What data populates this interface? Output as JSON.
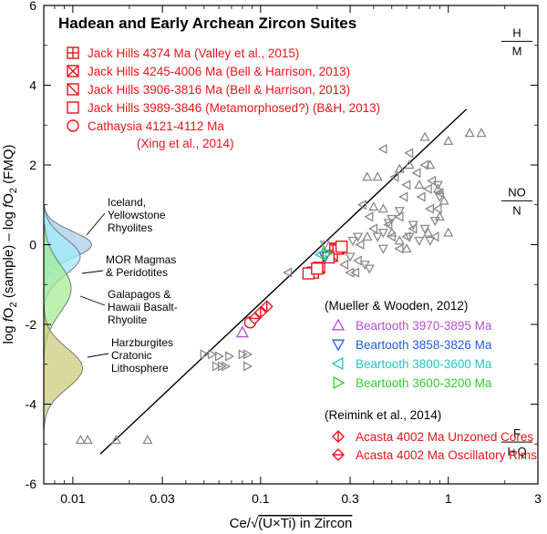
{
  "chart_data": {
    "type": "scatter",
    "title": "Hadean and Early Archean Zircon Suites",
    "xlabel_pre": "Ce/",
    "xlabel_sqrt": "√",
    "xlabel_post": "(U×Ti)  in Zircon",
    "ylabel_parts": [
      "log ",
      "f",
      "O",
      "2",
      " (sample) – log ",
      "f",
      "O",
      "2",
      " (FMQ)"
    ],
    "xscale": "log",
    "xlim": [
      0.007,
      3
    ],
    "ylim": [
      -6,
      6
    ],
    "xticks": [
      0.01,
      0.03,
      0.1,
      0.3,
      1,
      3
    ],
    "xtick_labels": [
      "0.01",
      "0.03",
      "0.1",
      "0.3",
      "1",
      "3"
    ],
    "yticks": [
      -6,
      -4,
      -2,
      0,
      2,
      4,
      6
    ],
    "ytick_labels": [
      "-6",
      "-4",
      "-2",
      "0",
      "2",
      "4",
      "6"
    ],
    "grid": false,
    "regression_line": {
      "x": [
        0.014,
        1.25
      ],
      "y": [
        -5.25,
        3.4
      ]
    },
    "buffers": [
      {
        "top": "H",
        "bottom": "M",
        "y": 5.1
      },
      {
        "top": "NO",
        "bottom": "N",
        "y": 1.1
      },
      {
        "top": "F",
        "bottom": "I+Q",
        "y": -4.95
      }
    ],
    "density_curves": [
      {
        "name": "Iceland, Yellowstone Rhyolites",
        "label": [
          "Iceland,",
          "Yellowstone",
          "Rhyolites"
        ],
        "color": "#a9cfee",
        "center": 0.0,
        "sigma": 0.33,
        "amp": 10.5,
        "ymin": -1.3,
        "ymax": 1.0
      },
      {
        "name": "MOR Magmas & Peridotites",
        "label": [
          "MOR Magmas",
          "& Peridotites"
        ],
        "color": "#9feaf5",
        "center": -0.3,
        "sigma": 0.45,
        "amp": 8.0,
        "ymin": -1.8,
        "ymax": 0.85
      },
      {
        "name": "Galapagos & Hawaii Basalt-Rhyolite",
        "label": [
          "Galapagos &",
          "Hawaii Basalt-",
          "Rhyolite"
        ],
        "color": "#a6ec95",
        "center": -1.1,
        "sigma": 0.6,
        "amp": 6.0,
        "ymin": -3.3,
        "ymax": 0.5
      },
      {
        "name": "Harzburgites Cratonic Lithosphere",
        "label": [
          "Harzburgites",
          "Cratonic",
          "Lithosphere"
        ],
        "color": "#cfcb7e",
        "center": -3.1,
        "sigma": 0.5,
        "amp": 8.5,
        "ymin": -4.6,
        "ymax": -1.5
      }
    ],
    "series": [
      {
        "name": "Jack Hills 4374 Ma (Valley et al., 2015)",
        "color": "#e8141b",
        "marker": "square-plus",
        "points": [
          [
            0.19,
            -0.7
          ]
        ]
      },
      {
        "name": "Jack Hills 4245-4006 Ma (Bell & Harrison, 2013)",
        "color": "#e8141b",
        "marker": "square-x",
        "points": [
          [
            0.25,
            -0.1
          ]
        ]
      },
      {
        "name": "Jack Hills 3906-3816 Ma (Bell & Harrison, 2013)",
        "color": "#e8141b",
        "marker": "square-diag",
        "points": [
          [
            0.205,
            -0.58
          ],
          [
            0.24,
            -0.28
          ],
          [
            0.26,
            -0.1
          ]
        ]
      },
      {
        "name": "Jack Hills 3989-3846 (Metamorphosed?) (B&H, 2013)",
        "color": "#e8141b",
        "marker": "square",
        "points": [
          [
            0.18,
            -0.72
          ],
          [
            0.2,
            -0.6
          ],
          [
            0.23,
            -0.32
          ],
          [
            0.27,
            -0.05
          ]
        ]
      },
      {
        "name": "Cathaysia 4121-4112 Ma (Xing et al., 2014)",
        "color": "#e8141b",
        "marker": "circle",
        "points": [
          [
            0.088,
            -1.95
          ]
        ]
      },
      {
        "name": "Beartooth 3970-3895 Ma",
        "color": "#b44fd4",
        "marker": "tri-up",
        "points": [
          [
            0.08,
            -2.2
          ]
        ]
      },
      {
        "name": "Beartooth 3858-3826 Ma",
        "color": "#1f5fe0",
        "marker": "tri-down",
        "points": [
          [
            0.22,
            -0.3
          ]
        ]
      },
      {
        "name": "Beartooth 3800-3600 Ma",
        "color": "#21c6c6",
        "marker": "tri-left",
        "points": [
          [
            0.21,
            -0.25
          ]
        ]
      },
      {
        "name": "Beartooth 3600-3200 Ma",
        "color": "#33cc33",
        "marker": "tri-right",
        "points": [
          [
            0.225,
            -0.22
          ]
        ]
      },
      {
        "name": "Acasta 4002 Ma Unzoned Cores",
        "color": "#e8141b",
        "marker": "diamond-v",
        "points": [
          [
            0.1,
            -1.7
          ],
          [
            0.108,
            -1.55
          ]
        ]
      },
      {
        "name": "Acasta 4002 Ma Oscillatory Rims",
        "color": "#e8141b",
        "marker": "diamond-h",
        "points": [
          [
            0.093,
            -1.85
          ]
        ]
      }
    ],
    "gray_points": {
      "color": "#8a8a8a",
      "tri_up": [
        [
          0.011,
          -4.9
        ],
        [
          0.012,
          -4.9
        ],
        [
          0.017,
          -4.9
        ],
        [
          0.025,
          -4.9
        ],
        [
          0.37,
          1.7
        ],
        [
          0.42,
          1.7
        ],
        [
          0.55,
          1.9
        ],
        [
          0.62,
          2.0
        ],
        [
          0.75,
          2.7
        ],
        [
          0.7,
          1.5
        ],
        [
          0.8,
          2.0
        ],
        [
          1.3,
          2.8
        ],
        [
          1.5,
          2.8
        ],
        [
          1.0,
          2.6
        ],
        [
          0.88,
          1.4
        ],
        [
          0.95,
          1.1
        ],
        [
          0.9,
          0.7
        ],
        [
          1.0,
          0.3
        ],
        [
          0.78,
          0.3
        ],
        [
          0.5,
          0.3
        ],
        [
          0.55,
          0.1
        ],
        [
          0.6,
          -0.1
        ],
        [
          0.45,
          0.9
        ],
        [
          0.4,
          0.95
        ],
        [
          0.37,
          0.2
        ]
      ],
      "tri_down": [
        [
          0.22,
          0.0
        ],
        [
          0.25,
          -0.2
        ],
        [
          0.3,
          -0.3
        ],
        [
          0.31,
          0.1
        ],
        [
          0.33,
          0.2
        ],
        [
          0.36,
          -0.5
        ],
        [
          0.42,
          0.2
        ],
        [
          0.45,
          -0.1
        ],
        [
          0.48,
          0.55
        ],
        [
          0.5,
          0.65
        ],
        [
          0.55,
          0.85
        ],
        [
          0.65,
          0.5
        ],
        [
          0.7,
          0.1
        ],
        [
          0.75,
          0.4
        ],
        [
          0.8,
          0.1
        ],
        [
          0.85,
          0.6
        ],
        [
          0.9,
          1.2
        ],
        [
          0.45,
          0.3
        ],
        [
          0.38,
          -0.6
        ],
        [
          0.62,
          0.2
        ],
        [
          0.88,
          1.5
        ]
      ],
      "tri_left": [
        [
          0.14,
          -0.7
        ],
        [
          0.28,
          -0.5
        ],
        [
          0.3,
          -0.7
        ],
        [
          0.32,
          -0.7
        ],
        [
          0.33,
          -0.4
        ],
        [
          0.35,
          1.0
        ],
        [
          0.38,
          0.7
        ],
        [
          0.4,
          0.4
        ],
        [
          0.45,
          2.4
        ],
        [
          0.5,
          0.2
        ],
        [
          0.52,
          1.7
        ],
        [
          0.55,
          0.7
        ],
        [
          0.58,
          1.2
        ],
        [
          0.6,
          1.5
        ],
        [
          0.62,
          2.3
        ],
        [
          0.65,
          0.4
        ],
        [
          0.68,
          1.8
        ],
        [
          0.72,
          1.2
        ],
        [
          0.75,
          2.0
        ],
        [
          0.78,
          1.4
        ],
        [
          0.8,
          0.9
        ],
        [
          0.82,
          1.6
        ],
        [
          0.85,
          0.2
        ],
        [
          0.88,
          0.9
        ],
        [
          0.9,
          1.3
        ],
        [
          0.6,
          0.2
        ],
        [
          0.55,
          -0.1
        ],
        [
          0.48,
          0.5
        ],
        [
          0.34,
          0.0
        ]
      ],
      "tri_right": [
        [
          0.05,
          -2.75
        ],
        [
          0.055,
          -2.75
        ],
        [
          0.06,
          -2.8
        ],
        [
          0.068,
          -2.8
        ],
        [
          0.08,
          -2.75
        ],
        [
          0.085,
          -2.75
        ],
        [
          0.058,
          -3.05
        ],
        [
          0.062,
          -3.05
        ],
        [
          0.065,
          -3.05
        ],
        [
          0.085,
          -3.05
        ]
      ]
    },
    "ref_title": "(Mueller & Wooden, 2012)",
    "ref_title2": "(Reimink et al., 2014)",
    "legend_left": [
      {
        "label": "Jack Hills 4374 Ma (Valley et al., 2015)",
        "marker": "square-plus",
        "color": "#e8141b"
      },
      {
        "label": "Jack Hills 4245-4006 Ma (Bell & Harrison, 2013)",
        "marker": "square-x",
        "color": "#e8141b"
      },
      {
        "label": "Jack Hills 3906-3816 Ma (Bell & Harrison, 2013)",
        "marker": "square-diag",
        "color": "#e8141b"
      },
      {
        "label": "Jack Hills 3989-3846 (Metamorphosed?) (B&H, 2013)",
        "marker": "square",
        "color": "#e8141b"
      },
      {
        "label": "Cathaysia 4121-4112 Ma",
        "label2": "(Xing et al., 2014)",
        "marker": "circle",
        "color": "#e8141b"
      }
    ],
    "legend_right": [
      {
        "label": "Beartooth 3970-3895 Ma",
        "marker": "tri-up",
        "color": "#b44fd4"
      },
      {
        "label": "Beartooth 3858-3826 Ma",
        "marker": "tri-down",
        "color": "#1f5fe0"
      },
      {
        "label": "Beartooth 3800-3600 Ma",
        "marker": "tri-left",
        "color": "#21c6c6"
      },
      {
        "label": "Beartooth 3600-3200 Ma",
        "marker": "tri-right",
        "color": "#33cc33"
      }
    ],
    "legend_right2": [
      {
        "label": "Acasta 4002 Ma Unzoned Cores",
        "marker": "diamond-v",
        "color": "#e8141b"
      },
      {
        "label": "Acasta 4002 Ma Oscillatory Rims",
        "marker": "diamond-h",
        "color": "#e8141b"
      }
    ]
  }
}
